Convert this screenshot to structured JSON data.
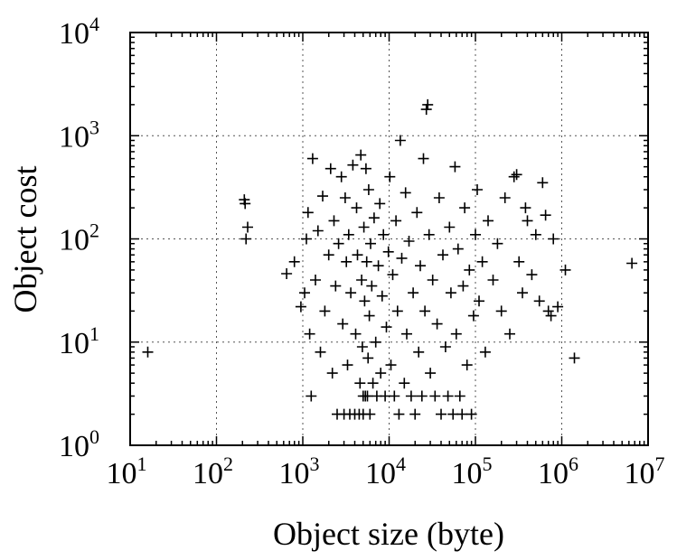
{
  "chart_data": {
    "type": "scatter",
    "xlabel": "Object size (byte)",
    "ylabel": "Object cost",
    "x_scale": "log",
    "y_scale": "log",
    "xlim": [
      10,
      10000000
    ],
    "ylim": [
      1,
      10000
    ],
    "grid": true,
    "marker": "+",
    "x_ticks": [
      {
        "base": "10",
        "exp": "1",
        "value": 10
      },
      {
        "base": "10",
        "exp": "2",
        "value": 100
      },
      {
        "base": "10",
        "exp": "3",
        "value": 1000
      },
      {
        "base": "10",
        "exp": "4",
        "value": 10000
      },
      {
        "base": "10",
        "exp": "5",
        "value": 100000
      },
      {
        "base": "10",
        "exp": "6",
        "value": 1000000
      },
      {
        "base": "10",
        "exp": "7",
        "value": 10000000
      }
    ],
    "y_ticks": [
      {
        "base": "10",
        "exp": "0",
        "value": 1
      },
      {
        "base": "10",
        "exp": "1",
        "value": 10
      },
      {
        "base": "10",
        "exp": "2",
        "value": 100
      },
      {
        "base": "10",
        "exp": "3",
        "value": 1000
      },
      {
        "base": "10",
        "exp": "4",
        "value": 10000
      }
    ],
    "points": [
      [
        16,
        8
      ],
      [
        210,
        240
      ],
      [
        215,
        220
      ],
      [
        230,
        130
      ],
      [
        220,
        100
      ],
      [
        650,
        46
      ],
      [
        800,
        60
      ],
      [
        950,
        22
      ],
      [
        1050,
        30
      ],
      [
        1100,
        100
      ],
      [
        1150,
        180
      ],
      [
        1200,
        12
      ],
      [
        1250,
        3
      ],
      [
        1300,
        600
      ],
      [
        1400,
        40
      ],
      [
        1500,
        120
      ],
      [
        1600,
        8
      ],
      [
        1700,
        260
      ],
      [
        1800,
        20
      ],
      [
        2000,
        70
      ],
      [
        2100,
        480
      ],
      [
        2200,
        5
      ],
      [
        2300,
        150
      ],
      [
        2400,
        35
      ],
      [
        2500,
        2
      ],
      [
        2600,
        90
      ],
      [
        2800,
        400
      ],
      [
        2900,
        15
      ],
      [
        3000,
        2
      ],
      [
        3100,
        250
      ],
      [
        3200,
        60
      ],
      [
        3300,
        6
      ],
      [
        3400,
        110
      ],
      [
        3500,
        2
      ],
      [
        3600,
        30
      ],
      [
        3800,
        520
      ],
      [
        4000,
        2
      ],
      [
        4100,
        12
      ],
      [
        4200,
        200
      ],
      [
        4300,
        70
      ],
      [
        4500,
        2
      ],
      [
        4600,
        4
      ],
      [
        4700,
        650
      ],
      [
        4800,
        40
      ],
      [
        4900,
        9
      ],
      [
        5000,
        3
      ],
      [
        5000,
        2
      ],
      [
        5100,
        130
      ],
      [
        5200,
        25
      ],
      [
        5300,
        3
      ],
      [
        5400,
        480
      ],
      [
        5500,
        60
      ],
      [
        5600,
        3
      ],
      [
        5700,
        7
      ],
      [
        5800,
        300
      ],
      [
        5900,
        18
      ],
      [
        6000,
        2
      ],
      [
        6100,
        90
      ],
      [
        6300,
        35
      ],
      [
        6500,
        4
      ],
      [
        6700,
        160
      ],
      [
        7000,
        10
      ],
      [
        7200,
        3
      ],
      [
        7500,
        55
      ],
      [
        7800,
        220
      ],
      [
        8000,
        5
      ],
      [
        8300,
        28
      ],
      [
        8600,
        110
      ],
      [
        9000,
        3
      ],
      [
        9300,
        14
      ],
      [
        9800,
        75
      ],
      [
        10200,
        400
      ],
      [
        10500,
        6
      ],
      [
        11000,
        45
      ],
      [
        11500,
        3
      ],
      [
        12000,
        150
      ],
      [
        12500,
        20
      ],
      [
        13000,
        2
      ],
      [
        13500,
        900
      ],
      [
        14000,
        65
      ],
      [
        15000,
        4
      ],
      [
        15500,
        280
      ],
      [
        16000,
        12
      ],
      [
        17000,
        95
      ],
      [
        18000,
        3
      ],
      [
        19000,
        30
      ],
      [
        20000,
        2
      ],
      [
        21000,
        180
      ],
      [
        22000,
        8
      ],
      [
        23000,
        55
      ],
      [
        24000,
        3
      ],
      [
        25000,
        600
      ],
      [
        26000,
        20
      ],
      [
        27000,
        1800
      ],
      [
        28000,
        2000
      ],
      [
        29000,
        110
      ],
      [
        30000,
        5
      ],
      [
        32000,
        40
      ],
      [
        34000,
        3
      ],
      [
        36000,
        15
      ],
      [
        38000,
        250
      ],
      [
        40000,
        2
      ],
      [
        42000,
        70
      ],
      [
        45000,
        9
      ],
      [
        48000,
        3
      ],
      [
        50000,
        130
      ],
      [
        52000,
        30
      ],
      [
        55000,
        2
      ],
      [
        58000,
        500
      ],
      [
        60000,
        12
      ],
      [
        63000,
        80
      ],
      [
        66000,
        3
      ],
      [
        70000,
        2
      ],
      [
        72000,
        35
      ],
      [
        75000,
        200
      ],
      [
        80000,
        6
      ],
      [
        85000,
        50
      ],
      [
        90000,
        2
      ],
      [
        95000,
        18
      ],
      [
        100000,
        110
      ],
      [
        105000,
        300
      ],
      [
        110000,
        25
      ],
      [
        120000,
        60
      ],
      [
        130000,
        8
      ],
      [
        140000,
        150
      ],
      [
        160000,
        40
      ],
      [
        180000,
        90
      ],
      [
        200000,
        20
      ],
      [
        220000,
        250
      ],
      [
        250000,
        12
      ],
      [
        280000,
        400
      ],
      [
        300000,
        420
      ],
      [
        320000,
        60
      ],
      [
        350000,
        30
      ],
      [
        380000,
        200
      ],
      [
        400000,
        150
      ],
      [
        450000,
        45
      ],
      [
        500000,
        110
      ],
      [
        550000,
        25
      ],
      [
        600000,
        350
      ],
      [
        650000,
        170
      ],
      [
        700000,
        20
      ],
      [
        750000,
        18
      ],
      [
        800000,
        100
      ],
      [
        900000,
        22
      ],
      [
        1100000,
        50
      ],
      [
        1400000,
        7
      ],
      [
        6500000,
        58
      ]
    ]
  }
}
